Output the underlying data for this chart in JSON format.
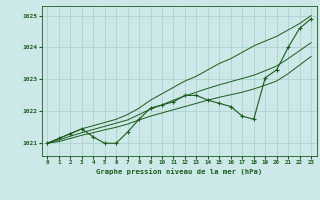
{
  "title": "Graphe pression niveau de la mer (hPa)",
  "bg_color": "#cce8e8",
  "grid_color": "#aacece",
  "line_color": "#1a5c1a",
  "x_ticks": [
    0,
    1,
    2,
    3,
    4,
    5,
    6,
    7,
    8,
    9,
    10,
    11,
    12,
    13,
    14,
    15,
    16,
    17,
    18,
    19,
    20,
    21,
    22,
    23
  ],
  "ylim": [
    1020.6,
    1025.3
  ],
  "yticks": [
    1021,
    1022,
    1023,
    1024,
    1025
  ],
  "series_main": [
    1021.0,
    1021.15,
    1021.3,
    1021.45,
    1021.2,
    1021.0,
    1021.0,
    1021.35,
    1021.75,
    1022.1,
    1022.2,
    1022.3,
    1022.5,
    1022.5,
    1022.35,
    1022.25,
    1022.15,
    1021.85,
    1021.75,
    1023.05,
    1023.3,
    1024.0,
    1024.6,
    1024.9
  ],
  "series_high": [
    1021.0,
    1021.15,
    1021.3,
    1021.45,
    1021.55,
    1021.65,
    1021.75,
    1021.9,
    1022.1,
    1022.35,
    1022.55,
    1022.75,
    1022.95,
    1023.1,
    1023.3,
    1023.5,
    1023.65,
    1023.85,
    1024.05,
    1024.2,
    1024.35,
    1024.55,
    1024.75,
    1025.0
  ],
  "series_mid": [
    1021.0,
    1021.1,
    1021.22,
    1021.33,
    1021.43,
    1021.53,
    1021.63,
    1021.73,
    1021.9,
    1022.07,
    1022.2,
    1022.35,
    1022.48,
    1022.6,
    1022.72,
    1022.83,
    1022.93,
    1023.03,
    1023.13,
    1023.27,
    1023.42,
    1023.65,
    1023.9,
    1024.15
  ],
  "series_low": [
    1021.0,
    1021.05,
    1021.15,
    1021.25,
    1021.33,
    1021.42,
    1021.5,
    1021.6,
    1021.73,
    1021.85,
    1021.95,
    1022.05,
    1022.15,
    1022.25,
    1022.35,
    1022.44,
    1022.52,
    1022.6,
    1022.7,
    1022.82,
    1022.95,
    1023.18,
    1023.45,
    1023.72
  ]
}
